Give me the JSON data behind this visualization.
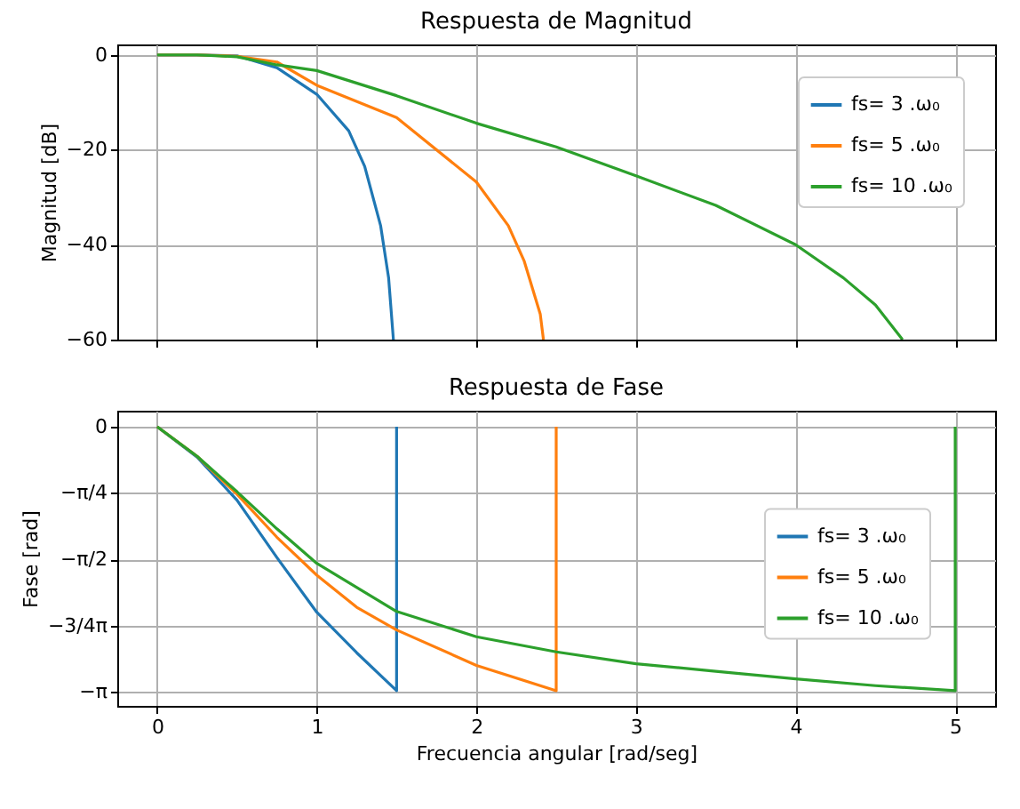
{
  "chart_data": [
    {
      "type": "line",
      "title": "Respuesta de Magnitud",
      "ylabel": "Magnitud [dB]",
      "xlim": [
        -0.25,
        5.25
      ],
      "xticks": [
        0,
        1,
        2,
        3,
        4,
        5
      ],
      "ylim": [
        -60,
        2.2
      ],
      "yticks": [
        -60,
        -40,
        -20,
        0
      ],
      "grid": true,
      "legend": "top right",
      "tick_labels": "y",
      "line_style": "solid",
      "series": [
        {
          "name": "fs=  3 .ω₀",
          "color": "#1f77b4",
          "x": [
            0,
            0.25,
            0.5,
            0.75,
            1,
            1.2,
            1.3,
            1.4,
            1.45,
            1.48
          ],
          "values": [
            0,
            0,
            -0.2,
            -2.7,
            -8.3,
            -16,
            -23.5,
            -36,
            -47,
            -60
          ]
        },
        {
          "name": "fs=  5 .ω₀",
          "color": "#ff7f0e",
          "x": [
            0,
            0.25,
            0.5,
            0.75,
            1,
            1.5,
            2,
            2.2,
            2.3,
            2.4,
            2.42
          ],
          "values": [
            0,
            0,
            -0.3,
            -1.5,
            -6.4,
            -13.2,
            -26.8,
            -36,
            -43.5,
            -54.6,
            -60
          ]
        },
        {
          "name": "fs= 10 .ω₀",
          "color": "#2ca02c",
          "x": [
            0,
            0.25,
            0.5,
            0.75,
            1,
            1.5,
            2,
            2.5,
            3,
            3.5,
            4,
            4.3,
            4.5,
            4.67
          ],
          "values": [
            0,
            0,
            -0.4,
            -2.1,
            -3.3,
            -8.6,
            -14.4,
            -19.4,
            -25.5,
            -31.7,
            -40,
            -47,
            -52.7,
            -60
          ]
        }
      ]
    },
    {
      "type": "line",
      "title": "Respuesta de Fase",
      "xlabel": "Frecuencia angular [rad/seg]",
      "ylabel": "Fase [rad]",
      "xlim": [
        -0.25,
        5.25
      ],
      "xticks": [
        0,
        1,
        2,
        3,
        4,
        5
      ],
      "ylim": [
        -3.31,
        0.19
      ],
      "yticks": [
        0,
        {
          "value": -0.785,
          "label": "−π/4"
        },
        {
          "value": -1.571,
          "label": "−π/2"
        },
        {
          "value": -2.356,
          "label": "−3/4π"
        },
        {
          "value": -3.142,
          "label": "−π"
        }
      ],
      "grid": true,
      "legend": "right",
      "line_style": "solid",
      "series": [
        {
          "name": "fs=  3 .ω₀",
          "color": "#1f77b4",
          "x": [
            0,
            0.25,
            0.5,
            0.75,
            1,
            1.25,
            1.5,
            1.5
          ],
          "values": [
            0,
            -0.36,
            -0.87,
            -1.55,
            -2.2,
            -2.68,
            -3.13,
            0
          ]
        },
        {
          "name": "fs=  5 .ω₀",
          "color": "#ff7f0e",
          "x": [
            0,
            0.25,
            0.5,
            0.75,
            1,
            1.25,
            1.5,
            2,
            2.5,
            2.5
          ],
          "values": [
            0,
            -0.35,
            -0.8,
            -1.31,
            -1.76,
            -2.14,
            -2.41,
            -2.83,
            -3.13,
            0
          ]
        },
        {
          "name": "fs= 10 .ω₀",
          "color": "#2ca02c",
          "x": [
            0,
            0.25,
            0.5,
            0.75,
            1,
            1.5,
            2,
            2.5,
            3,
            3.5,
            4,
            4.5,
            5,
            5
          ],
          "values": [
            0,
            -0.35,
            -0.77,
            -1.21,
            -1.62,
            -2.19,
            -2.49,
            -2.67,
            -2.81,
            -2.9,
            -2.99,
            -3.07,
            -3.13,
            0
          ]
        }
      ]
    }
  ]
}
